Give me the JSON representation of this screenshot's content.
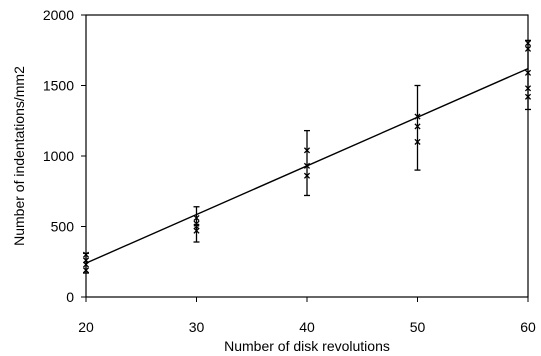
{
  "chart_data": {
    "type": "scatter",
    "title": "",
    "xlabel": "Number of disk revolutions",
    "ylabel": "Number of indentations/mm2",
    "xlim": [
      20,
      60
    ],
    "ylim": [
      0,
      2000
    ],
    "x_ticks": [
      20,
      30,
      40,
      50,
      60
    ],
    "x_tick_labels": [
      "20",
      "30",
      "40",
      "50",
      "60"
    ],
    "y_ticks": [
      0,
      500,
      1000,
      1500,
      2000
    ],
    "y_tick_labels": [
      "0",
      "500",
      "1000",
      "1500",
      "2000"
    ],
    "grid": false,
    "series": [
      {
        "points": [
          {
            "x": 20,
            "y": 300
          },
          {
            "x": 20,
            "y": 260
          },
          {
            "x": 20,
            "y": 230
          },
          {
            "x": 20,
            "y": 190
          },
          {
            "x": 30,
            "y": 560
          },
          {
            "x": 30,
            "y": 520
          },
          {
            "x": 30,
            "y": 500
          },
          {
            "x": 30,
            "y": 470
          },
          {
            "x": 40,
            "y": 1040
          },
          {
            "x": 40,
            "y": 930
          },
          {
            "x": 40,
            "y": 860
          },
          {
            "x": 50,
            "y": 1280
          },
          {
            "x": 50,
            "y": 1210
          },
          {
            "x": 50,
            "y": 1100
          },
          {
            "x": 60,
            "y": 1800
          },
          {
            "x": 60,
            "y": 1760
          },
          {
            "x": 60,
            "y": 1590
          },
          {
            "x": 60,
            "y": 1480
          },
          {
            "x": 60,
            "y": 1420
          }
        ]
      }
    ],
    "error_bars": [
      {
        "x": 20,
        "low": 170,
        "high": 310
      },
      {
        "x": 30,
        "low": 390,
        "high": 640
      },
      {
        "x": 40,
        "low": 720,
        "high": 1180
      },
      {
        "x": 50,
        "low": 900,
        "high": 1500
      },
      {
        "x": 60,
        "low": 1330,
        "high": 1820
      }
    ],
    "fit_line": {
      "x": [
        20,
        60
      ],
      "y": [
        240,
        1620
      ]
    }
  }
}
